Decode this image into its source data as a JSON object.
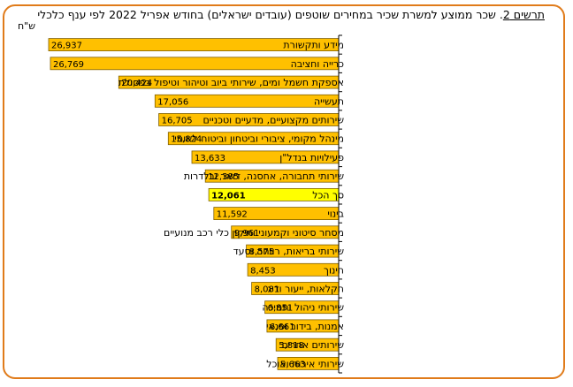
{
  "title": {
    "label": "תרשים 2",
    "text": "שכר ממוצע למשרת שכיר במחירים שוטפים (עובדים ישראלים) בחודש אפריל 2022 לפי ענף כלכלי"
  },
  "colors": {
    "frame": "#E07B1A",
    "bar": "#FFC000",
    "bar_highlight": "#FFFF00",
    "bar_border": "#7F5F00",
    "axis": "#000000"
  },
  "chart_data": {
    "type": "bar",
    "orientation": "horizontal",
    "unit_label": "ש\"ח",
    "highlight_category": "סך הכל",
    "xlim": [
      0,
      30000
    ],
    "grid": false,
    "categories": [
      "מידע ותקשורת",
      "כרייה וחציבה",
      "אספקת חשמל ומים, שירותי ביוב וטיהור וטיפול בפסולת",
      "תעשייה",
      "שירותים מקצועיים, מדעיים וטכניים",
      "מינהל מקומי, ציבורי וביטחון וביטוח לאומי",
      "פעילויות בנדל\"ן",
      "שירותי תחבורה, אחסנה, דואר ובלדרות",
      "סך הכל",
      "בינוי",
      "מסחר סיטוני וקמעוני ותיקון כלי רכב מנועיים",
      "שירותי בריאות, רווחה וסעד",
      "חינוך",
      "חקלאות, ייעור ודיג",
      "שירותי ניהול ותמיכה",
      "אמנות, בידור ופנאי",
      "שירותים אחרים",
      "שירותי אירוח ואוכל"
    ],
    "values": [
      26937,
      26769,
      20424,
      17056,
      16705,
      15824,
      13633,
      12385,
      12061,
      11592,
      9961,
      8575,
      8453,
      8081,
      6851,
      6661,
      5818,
      5663
    ],
    "value_labels": [
      "26,937",
      "26,769",
      "20,424",
      "17,056",
      "16,705",
      "15,824",
      "13,633",
      "12,385",
      "12,061",
      "11,592",
      "9,961",
      "8,575",
      "8,453",
      "8,081",
      "6,851",
      "6,661",
      "5,818",
      "5,663"
    ]
  }
}
